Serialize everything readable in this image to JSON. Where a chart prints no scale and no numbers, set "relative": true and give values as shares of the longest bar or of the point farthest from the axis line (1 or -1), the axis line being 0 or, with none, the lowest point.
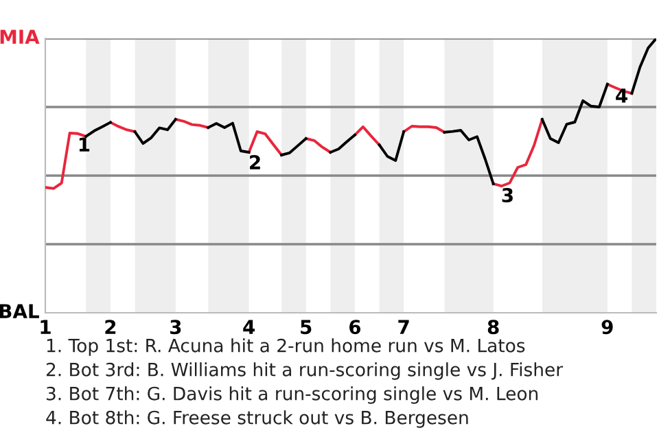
{
  "chart_data": {
    "type": "line",
    "relative": true,
    "categories": [
      "1",
      null,
      null,
      null,
      null,
      null,
      null,
      null,
      "2",
      null,
      null,
      null,
      null,
      null,
      null,
      null,
      "3",
      null,
      null,
      null,
      null,
      null,
      null,
      null,
      null,
      "4",
      null,
      null,
      null,
      null,
      null,
      null,
      "5",
      null,
      null,
      null,
      null,
      null,
      "6",
      null,
      null,
      null,
      null,
      null,
      "7",
      null,
      null,
      null,
      null,
      null,
      null,
      null,
      null,
      null,
      null,
      "8",
      null,
      null,
      null,
      null,
      null,
      null,
      null,
      null,
      null,
      null,
      null,
      null,
      null,
      "9",
      null,
      null,
      null,
      null,
      null,
      null
    ],
    "series": [
      {
        "color": "#e8263c",
        "values": [
          0.457,
          0.453,
          0.473,
          0.655,
          0.653,
          0.643,
          null,
          null,
          0.694,
          0.679,
          0.667,
          0.66,
          null,
          null,
          null,
          null,
          0.705,
          0.698,
          0.686,
          0.683,
          0.675,
          null,
          null,
          null,
          null,
          0.585,
          0.66,
          0.652,
          0.613,
          0.575,
          null,
          null,
          0.635,
          0.628,
          0.604,
          0.585,
          null,
          null,
          0.648,
          0.678,
          0.644,
          0.612,
          null,
          null,
          0.66,
          0.68,
          0.678,
          0.678,
          0.675,
          0.658,
          null,
          null,
          null,
          null,
          null,
          0.47,
          0.462,
          0.473,
          0.53,
          0.54,
          0.61,
          0.705,
          null,
          null,
          null,
          null,
          null,
          null,
          null,
          0.833,
          0.82,
          0.808,
          0.8,
          null,
          null,
          null
        ]
      },
      {
        "color": "#000000",
        "values": [
          null,
          null,
          null,
          null,
          null,
          0.643,
          0.663,
          0.678,
          0.694,
          null,
          null,
          0.66,
          0.617,
          0.638,
          0.674,
          0.667,
          0.705,
          null,
          null,
          null,
          0.675,
          0.69,
          0.675,
          0.691,
          0.59,
          0.585,
          null,
          null,
          null,
          0.575,
          0.583,
          0.609,
          0.635,
          null,
          null,
          0.585,
          0.597,
          0.623,
          0.648,
          null,
          null,
          0.612,
          0.57,
          0.555,
          0.66,
          null,
          null,
          null,
          null,
          0.658,
          0.661,
          0.665,
          0.63,
          0.642,
          0.56,
          0.47,
          null,
          null,
          null,
          null,
          null,
          0.705,
          0.635,
          0.62,
          0.687,
          0.695,
          0.773,
          0.753,
          0.75,
          0.833,
          null,
          null,
          0.8,
          0.895,
          0.965,
          1
        ]
      }
    ],
    "ref_lines": [
      {
        "axis": "y",
        "value": 0.25,
        "label": null,
        "color": "#888888"
      },
      {
        "axis": "y",
        "value": 0.5,
        "label": null,
        "color": "#888888"
      },
      {
        "axis": "y",
        "value": 0.75,
        "label": null,
        "color": "#888888"
      },
      {
        "axis": "y",
        "value": 1,
        "label": null,
        "color": "#888888"
      }
    ],
    "annotations": [
      "MIA",
      "BAL",
      {
        "text": "1",
        "y": 0.655
      },
      {
        "text": "2",
        "y": 0.59
      },
      {
        "text": "3",
        "y": 0.47
      },
      {
        "text": "4",
        "y": 0.833
      },
      "1. Top 1st: R. Acuna hit a 2-run home run vs M. Latos",
      "2. Bot 3rd: B. Williams hit a run-scoring single vs J. Fisher",
      "3. Bot 7th: G. Davis hit a run-scoring single vs M. Leon",
      "4. Bot 8th: G. Freese struck out vs B. Bergesen"
    ]
  }
}
